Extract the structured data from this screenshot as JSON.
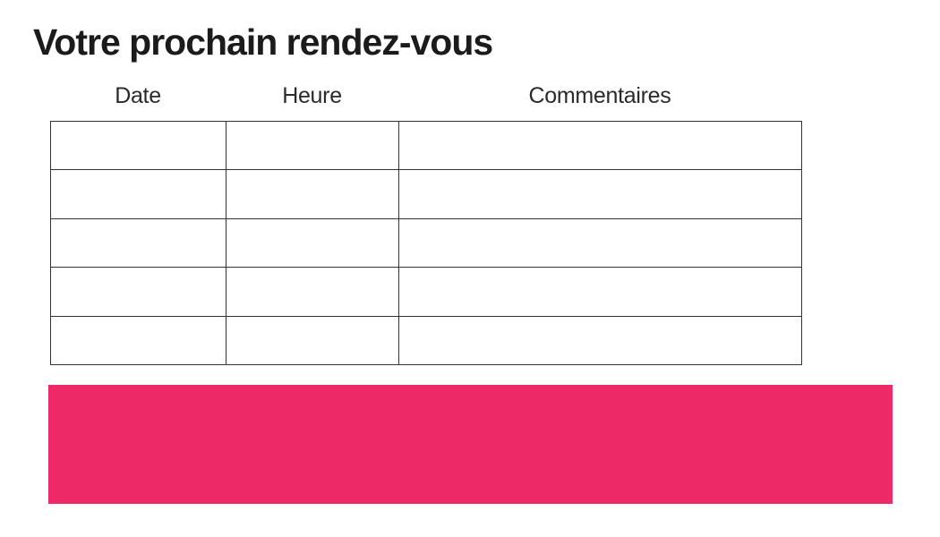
{
  "page": {
    "title": "Votre prochain rendez-vous",
    "background": "#ffffff"
  },
  "table": {
    "columns": [
      {
        "label": "Date"
      },
      {
        "label": "Heure"
      },
      {
        "label": "Commentaires"
      }
    ],
    "rows": [
      [
        "",
        "",
        ""
      ],
      [
        "",
        "",
        ""
      ],
      [
        "",
        "",
        ""
      ],
      [
        "",
        "",
        ""
      ],
      [
        "",
        "",
        ""
      ]
    ]
  },
  "banner": {
    "color": "#ED2A67"
  },
  "colors": {
    "accent_pink": "#ED2A67",
    "table_border": "#333333",
    "title_text": "#1b1b1b",
    "header_text": "#2a2a2a"
  }
}
